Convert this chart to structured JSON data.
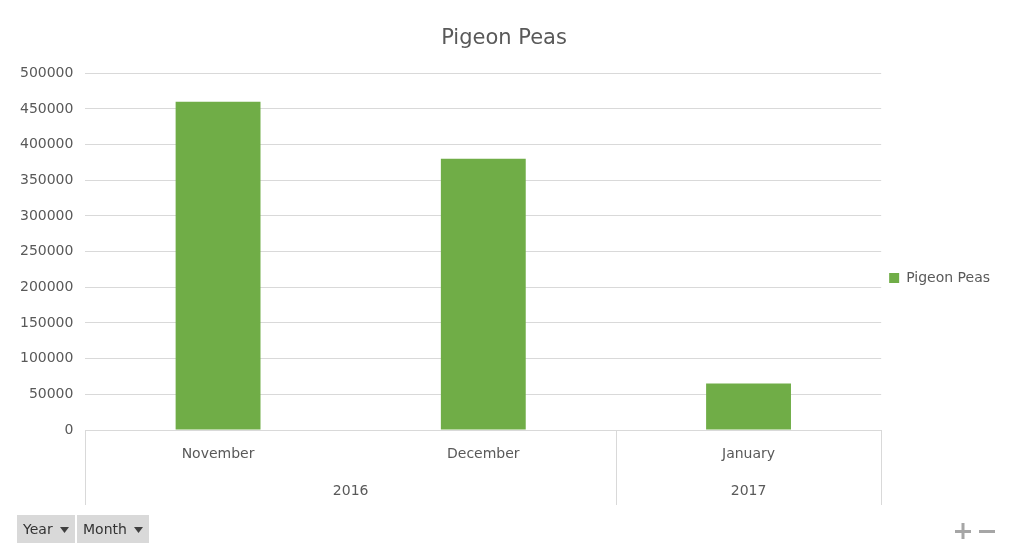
{
  "chart_data": {
    "type": "bar",
    "title": "Pigeon Peas",
    "categories": [
      "November",
      "December",
      "January"
    ],
    "series": [
      {
        "name": "Pigeon Peas",
        "color": "#70ad47",
        "values": [
          460000,
          380000,
          65000
        ]
      }
    ],
    "ylim": [
      0,
      500000
    ],
    "yticks": [
      0,
      50000,
      100000,
      150000,
      200000,
      250000,
      300000,
      350000,
      400000,
      450000,
      500000
    ],
    "grid": "y",
    "legend": "right",
    "annotations": [
      "2016",
      "2017",
      "Year",
      "Month"
    ]
  }
}
